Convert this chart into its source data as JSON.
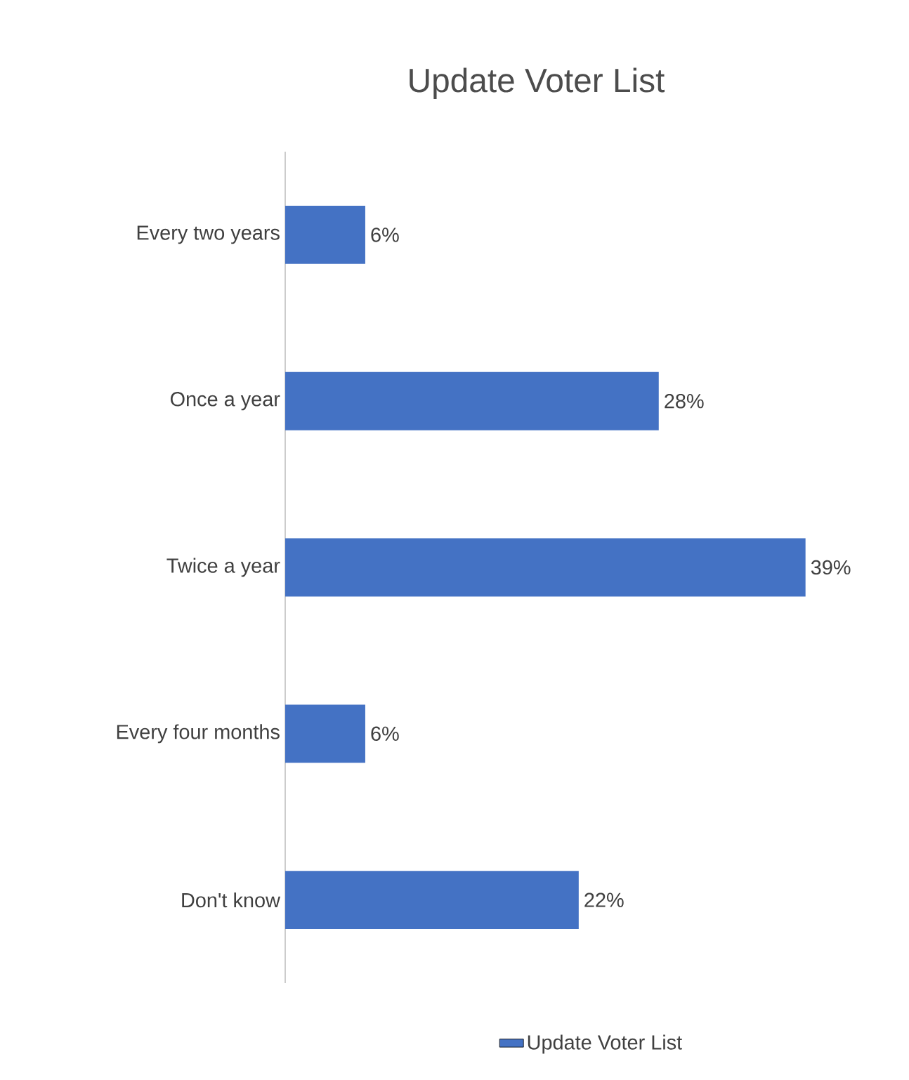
{
  "chart_data": {
    "type": "bar",
    "orientation": "horizontal",
    "title": "Update Voter List",
    "categories": [
      "Every two years",
      "Once a year",
      "Twice a year",
      "Every four months",
      "Don't know"
    ],
    "series": [
      {
        "name": "Update Voter List",
        "color": "#4472c4",
        "values": [
          6,
          28,
          39,
          6,
          22
        ],
        "value_labels": [
          "6%",
          "28%",
          "39%",
          "6%",
          "22%"
        ]
      }
    ],
    "legend": "bottom"
  }
}
